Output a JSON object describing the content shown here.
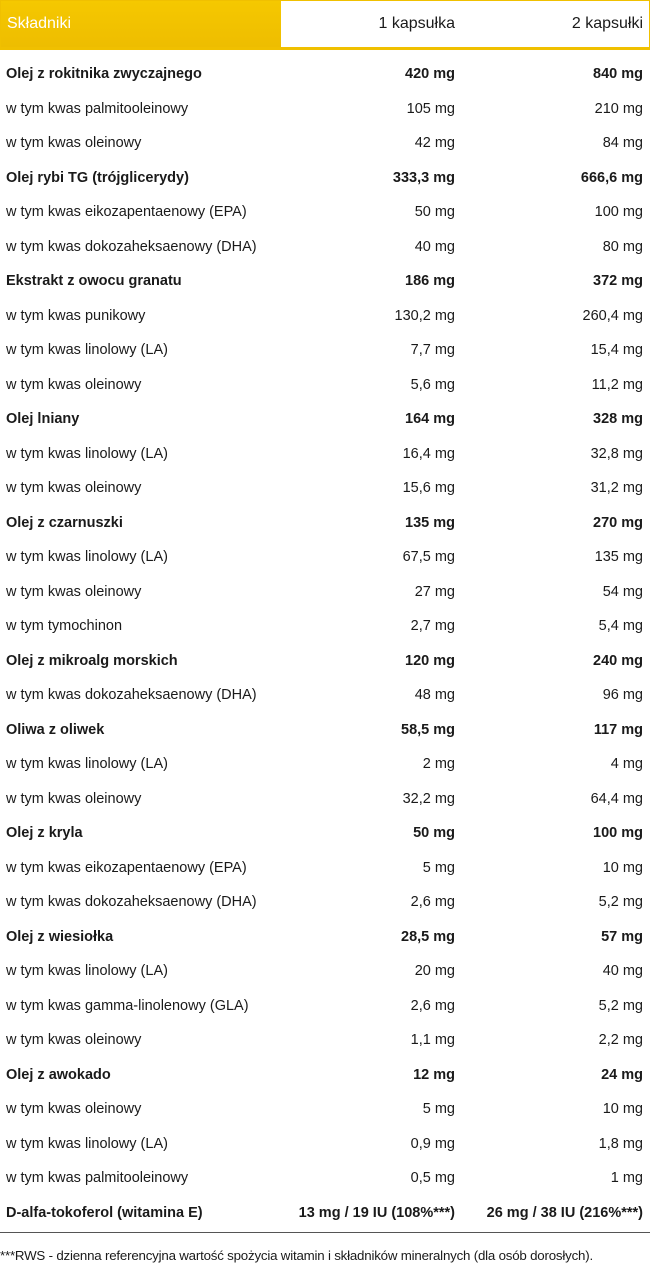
{
  "header": {
    "title": "Składniki",
    "col1": "1 kapsułka",
    "col2": "2 kapsułki"
  },
  "groups": [
    {
      "name": "Olej z rokitnika zwyczajnego",
      "c1": "420 mg",
      "c2": "840 mg",
      "items": [
        {
          "name": "w tym kwas palmitooleinowy",
          "c1": "105 mg",
          "c2": "210 mg"
        },
        {
          "name": "w tym kwas oleinowy",
          "c1": "42 mg",
          "c2": "84 mg"
        }
      ]
    },
    {
      "name": "Olej rybi TG (trójglicerydy)",
      "c1": "333,3 mg",
      "c2": "666,6 mg",
      "items": [
        {
          "name": "w tym kwas eikozapentaenowy (EPA)",
          "c1": "50 mg",
          "c2": "100 mg"
        },
        {
          "name": "w tym kwas dokozaheksaenowy (DHA)",
          "c1": "40 mg",
          "c2": "80 mg"
        }
      ]
    },
    {
      "name": "Ekstrakt z owocu granatu",
      "c1": "186 mg",
      "c2": "372 mg",
      "items": [
        {
          "name": "w tym kwas punikowy",
          "c1": "130,2 mg",
          "c2": "260,4 mg"
        },
        {
          "name": "w tym kwas linolowy (LA)",
          "c1": "7,7 mg",
          "c2": "15,4 mg"
        },
        {
          "name": "w tym kwas oleinowy",
          "c1": "5,6 mg",
          "c2": "11,2 mg"
        }
      ]
    },
    {
      "name": "Olej lniany",
      "c1": "164 mg",
      "c2": "328 mg",
      "items": [
        {
          "name": "w tym kwas linolowy (LA)",
          "c1": "16,4 mg",
          "c2": "32,8 mg"
        },
        {
          "name": "w tym kwas oleinowy",
          "c1": "15,6 mg",
          "c2": "31,2 mg"
        }
      ]
    },
    {
      "name": "Olej z czarnuszki",
      "c1": "135 mg",
      "c2": "270 mg",
      "items": [
        {
          "name": "w tym kwas linolowy (LA)",
          "c1": "67,5 mg",
          "c2": "135 mg"
        },
        {
          "name": "w tym kwas oleinowy",
          "c1": "27 mg",
          "c2": "54 mg"
        },
        {
          "name": "w tym tymochinon",
          "c1": "2,7 mg",
          "c2": "5,4 mg"
        }
      ]
    },
    {
      "name": "Olej z mikroalg morskich",
      "c1": "120 mg",
      "c2": "240 mg",
      "items": [
        {
          "name": "w tym kwas dokozaheksaenowy (DHA)",
          "c1": "48 mg",
          "c2": "96 mg"
        }
      ]
    },
    {
      "name": "Oliwa z oliwek",
      "c1": "58,5 mg",
      "c2": "117 mg",
      "items": [
        {
          "name": "w tym kwas linolowy (LA)",
          "c1": "2 mg",
          "c2": "4 mg"
        },
        {
          "name": "w tym kwas oleinowy",
          "c1": "32,2 mg",
          "c2": "64,4 mg"
        }
      ]
    },
    {
      "name": "Olej z kryla",
      "c1": "50 mg",
      "c2": "100 mg",
      "items": [
        {
          "name": "w tym kwas eikozapentaenowy (EPA)",
          "c1": "5 mg",
          "c2": "10 mg"
        },
        {
          "name": "w tym kwas dokozaheksaenowy (DHA)",
          "c1": "2,6 mg",
          "c2": "5,2 mg"
        }
      ]
    },
    {
      "name": "Olej z wiesiołka",
      "c1": "28,5 mg",
      "c2": "57 mg",
      "items": [
        {
          "name": "w tym kwas linolowy (LA)",
          "c1": "20 mg",
          "c2": "40 mg"
        },
        {
          "name": "w tym kwas gamma-linolenowy (GLA)",
          "c1": "2,6 mg",
          "c2": "5,2 mg"
        },
        {
          "name": "w tym kwas oleinowy",
          "c1": "1,1 mg",
          "c2": "2,2 mg"
        }
      ]
    },
    {
      "name": "Olej z awokado",
      "c1": "12 mg",
      "c2": "24 mg",
      "items": [
        {
          "name": "w tym kwas oleinowy",
          "c1": "5 mg",
          "c2": "10 mg"
        },
        {
          "name": "w tym kwas linolowy (LA)",
          "c1": "0,9 mg",
          "c2": "1,8 mg"
        },
        {
          "name": "w tym kwas palmitooleinowy",
          "c1": "0,5 mg",
          "c2": "1 mg"
        }
      ]
    },
    {
      "name": "D-alfa-tokoferol (witamina E)",
      "c1": "13 mg / 19 IU (108%***)",
      "c2": "26 mg / 38 IU (216%***)",
      "items": []
    }
  ],
  "footnote": "***RWS - dzienna referencyjna wartość spożycia witamin i składników mineralnych (dla osób dorosłych)."
}
